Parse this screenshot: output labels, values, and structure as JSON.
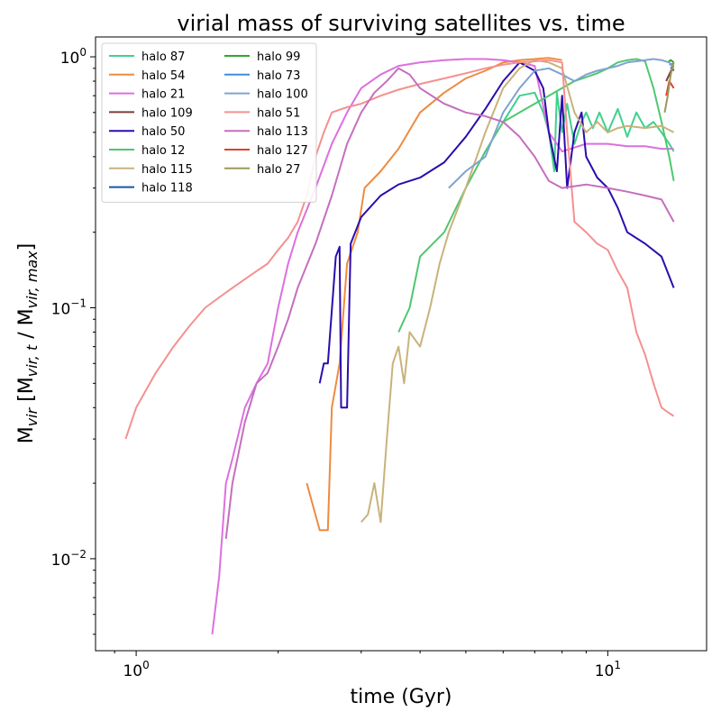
{
  "chart_data": {
    "type": "line",
    "title": "virial mass of surviving satellites vs. time",
    "xlabel": "time (Gyr)",
    "ylabel_main": "M",
    "ylabel_sub": "vir",
    "ylabel_bracket": " [M",
    "ylabel_num_sub": "vir, t",
    "ylabel_sep": " / M",
    "ylabel_den_sub": "vir, max",
    "ylabel_close": "]",
    "xscale": "log",
    "yscale": "log",
    "xlim": [
      0.82,
      16.2
    ],
    "ylim": [
      0.0043,
      1.2
    ],
    "x_ticks": [
      {
        "value": 1,
        "label": "10",
        "sup": "0"
      },
      {
        "value": 10,
        "label": "10",
        "sup": "1"
      }
    ],
    "y_ticks": [
      {
        "value": 0.01,
        "label": "10",
        "sup": "−2"
      },
      {
        "value": 0.1,
        "label": "10",
        "sup": "−1"
      },
      {
        "value": 1,
        "label": "10",
        "sup": "0"
      }
    ],
    "legend_position": "upper-left",
    "series": [
      {
        "name": "halo 87",
        "color": "#3fd18c",
        "points": [
          [
            6.0,
            0.55
          ],
          [
            6.5,
            0.7
          ],
          [
            7.0,
            0.72
          ],
          [
            7.3,
            0.6
          ],
          [
            7.5,
            0.5
          ],
          [
            7.7,
            0.35
          ],
          [
            7.8,
            0.72
          ],
          [
            8.0,
            0.5
          ],
          [
            8.2,
            0.65
          ],
          [
            8.5,
            0.45
          ],
          [
            8.8,
            0.55
          ],
          [
            9.0,
            0.6
          ],
          [
            9.3,
            0.52
          ],
          [
            9.6,
            0.6
          ],
          [
            10.0,
            0.5
          ],
          [
            10.5,
            0.62
          ],
          [
            11.0,
            0.48
          ],
          [
            11.5,
            0.6
          ],
          [
            12.0,
            0.52
          ],
          [
            12.5,
            0.55
          ],
          [
            13.0,
            0.5
          ],
          [
            13.5,
            0.45
          ],
          [
            13.8,
            0.42
          ]
        ]
      },
      {
        "name": "halo 54",
        "color": "#ee8b40",
        "points": [
          [
            2.3,
            0.02
          ],
          [
            2.45,
            0.013
          ],
          [
            2.55,
            0.013
          ],
          [
            2.6,
            0.04
          ],
          [
            2.7,
            0.06
          ],
          [
            2.8,
            0.15
          ],
          [
            2.95,
            0.2
          ],
          [
            3.05,
            0.3
          ],
          [
            3.3,
            0.35
          ],
          [
            3.6,
            0.43
          ],
          [
            4.0,
            0.6
          ],
          [
            4.5,
            0.72
          ],
          [
            5.0,
            0.82
          ],
          [
            5.5,
            0.88
          ],
          [
            6.0,
            0.95
          ],
          [
            6.5,
            0.97
          ],
          [
            7.0,
            0.98
          ],
          [
            7.5,
            0.99
          ],
          [
            8.0,
            0.97
          ]
        ]
      },
      {
        "name": "halo 21",
        "color": "#dd6fe0",
        "points": [
          [
            1.45,
            0.005
          ],
          [
            1.5,
            0.0085
          ],
          [
            1.55,
            0.02
          ],
          [
            1.6,
            0.025
          ],
          [
            1.7,
            0.04
          ],
          [
            1.8,
            0.05
          ],
          [
            1.9,
            0.06
          ],
          [
            2.0,
            0.1
          ],
          [
            2.1,
            0.15
          ],
          [
            2.2,
            0.2
          ],
          [
            2.4,
            0.3
          ],
          [
            2.6,
            0.45
          ],
          [
            2.8,
            0.6
          ],
          [
            3.0,
            0.75
          ],
          [
            3.3,
            0.85
          ],
          [
            3.6,
            0.92
          ],
          [
            4.0,
            0.95
          ],
          [
            4.5,
            0.97
          ],
          [
            5.0,
            0.98
          ],
          [
            5.5,
            0.98
          ],
          [
            6.0,
            0.97
          ],
          [
            6.5,
            0.95
          ],
          [
            7.0,
            0.92
          ],
          [
            7.5,
            0.5
          ],
          [
            8.0,
            0.42
          ],
          [
            9.0,
            0.45
          ],
          [
            10.0,
            0.45
          ],
          [
            11.0,
            0.44
          ],
          [
            12.0,
            0.44
          ],
          [
            13.0,
            0.43
          ],
          [
            13.8,
            0.43
          ]
        ]
      },
      {
        "name": "halo 109",
        "color": "#7b3c3c",
        "points": [
          [
            13.3,
            0.8
          ],
          [
            13.5,
            0.85
          ],
          [
            13.7,
            0.9
          ],
          [
            13.8,
            0.88
          ]
        ]
      },
      {
        "name": "halo 50",
        "color": "#2c0cad",
        "points": [
          [
            2.45,
            0.05
          ],
          [
            2.5,
            0.06
          ],
          [
            2.55,
            0.06
          ],
          [
            2.65,
            0.16
          ],
          [
            2.7,
            0.175
          ],
          [
            2.72,
            0.04
          ],
          [
            2.8,
            0.04
          ],
          [
            2.85,
            0.18
          ],
          [
            3.0,
            0.23
          ],
          [
            3.3,
            0.28
          ],
          [
            3.6,
            0.31
          ],
          [
            4.0,
            0.33
          ],
          [
            4.5,
            0.38
          ],
          [
            5.0,
            0.48
          ],
          [
            5.5,
            0.62
          ],
          [
            6.0,
            0.8
          ],
          [
            6.5,
            0.95
          ],
          [
            7.0,
            0.88
          ],
          [
            7.3,
            0.75
          ],
          [
            7.5,
            0.5
          ],
          [
            7.8,
            0.35
          ],
          [
            8.0,
            0.7
          ],
          [
            8.2,
            0.3
          ],
          [
            8.5,
            0.5
          ],
          [
            8.8,
            0.6
          ],
          [
            9.0,
            0.4
          ],
          [
            9.5,
            0.33
          ],
          [
            10.0,
            0.3
          ],
          [
            10.5,
            0.25
          ],
          [
            11.0,
            0.2
          ],
          [
            12.0,
            0.18
          ],
          [
            13.0,
            0.16
          ],
          [
            13.8,
            0.12
          ]
        ]
      },
      {
        "name": "halo 12",
        "color": "#4fc76f",
        "points": [
          [
            3.6,
            0.08
          ],
          [
            3.8,
            0.1
          ],
          [
            4.0,
            0.16
          ],
          [
            4.5,
            0.2
          ],
          [
            5.0,
            0.3
          ],
          [
            5.5,
            0.42
          ],
          [
            6.0,
            0.55
          ],
          [
            6.5,
            0.6
          ],
          [
            7.0,
            0.65
          ],
          [
            7.5,
            0.7
          ],
          [
            8.0,
            0.75
          ],
          [
            8.5,
            0.8
          ],
          [
            9.0,
            0.83
          ],
          [
            9.5,
            0.86
          ],
          [
            10.0,
            0.9
          ],
          [
            10.5,
            0.95
          ],
          [
            11.0,
            0.97
          ],
          [
            11.5,
            0.98
          ],
          [
            12.0,
            0.96
          ],
          [
            12.5,
            0.75
          ],
          [
            13.0,
            0.55
          ],
          [
            13.5,
            0.4
          ],
          [
            13.8,
            0.32
          ]
        ]
      },
      {
        "name": "halo 115",
        "color": "#c9b27c",
        "points": [
          [
            3.0,
            0.014
          ],
          [
            3.1,
            0.015
          ],
          [
            3.2,
            0.02
          ],
          [
            3.3,
            0.014
          ],
          [
            3.4,
            0.03
          ],
          [
            3.5,
            0.06
          ],
          [
            3.6,
            0.07
          ],
          [
            3.7,
            0.05
          ],
          [
            3.8,
            0.08
          ],
          [
            4.0,
            0.07
          ],
          [
            4.2,
            0.1
          ],
          [
            4.4,
            0.15
          ],
          [
            4.6,
            0.2
          ],
          [
            5.0,
            0.3
          ],
          [
            5.5,
            0.5
          ],
          [
            6.0,
            0.75
          ],
          [
            6.5,
            0.9
          ],
          [
            7.0,
            0.97
          ],
          [
            7.5,
            0.95
          ],
          [
            8.0,
            0.9
          ],
          [
            8.5,
            0.6
          ],
          [
            9.0,
            0.5
          ],
          [
            9.5,
            0.55
          ],
          [
            10.0,
            0.5
          ],
          [
            10.5,
            0.52
          ],
          [
            11.0,
            0.53
          ],
          [
            12.0,
            0.52
          ],
          [
            13.0,
            0.53
          ],
          [
            13.8,
            0.5
          ]
        ]
      },
      {
        "name": "halo 118",
        "color": "#1a55a8",
        "points": [
          [
            13.6,
            0.9
          ],
          [
            13.8,
            0.92
          ]
        ]
      },
      {
        "name": "halo 99",
        "color": "#2ea82e",
        "points": [
          [
            13.4,
            0.95
          ],
          [
            13.6,
            0.97
          ],
          [
            13.8,
            0.95
          ]
        ]
      },
      {
        "name": "halo 73",
        "color": "#3b8fd8",
        "points": [
          [
            13.5,
            0.93
          ],
          [
            13.8,
            0.94
          ]
        ]
      },
      {
        "name": "halo 100",
        "color": "#7fa3d1",
        "points": [
          [
            4.6,
            0.3
          ],
          [
            5.0,
            0.35
          ],
          [
            5.5,
            0.4
          ],
          [
            6.0,
            0.6
          ],
          [
            6.5,
            0.75
          ],
          [
            7.0,
            0.88
          ],
          [
            7.5,
            0.9
          ],
          [
            8.0,
            0.85
          ],
          [
            8.5,
            0.8
          ],
          [
            9.0,
            0.85
          ],
          [
            9.5,
            0.88
          ],
          [
            10.0,
            0.9
          ],
          [
            10.5,
            0.92
          ],
          [
            11.0,
            0.95
          ],
          [
            11.5,
            0.96
          ],
          [
            12.0,
            0.97
          ],
          [
            12.5,
            0.98
          ],
          [
            13.0,
            0.97
          ],
          [
            13.5,
            0.95
          ],
          [
            13.8,
            0.9
          ]
        ]
      },
      {
        "name": "halo 51",
        "color": "#f59090",
        "points": [
          [
            0.95,
            0.03
          ],
          [
            1.0,
            0.04
          ],
          [
            1.1,
            0.055
          ],
          [
            1.2,
            0.07
          ],
          [
            1.3,
            0.085
          ],
          [
            1.4,
            0.1
          ],
          [
            1.5,
            0.11
          ],
          [
            1.6,
            0.12
          ],
          [
            1.7,
            0.13
          ],
          [
            1.8,
            0.14
          ],
          [
            1.9,
            0.15
          ],
          [
            2.0,
            0.17
          ],
          [
            2.1,
            0.19
          ],
          [
            2.2,
            0.22
          ],
          [
            2.3,
            0.28
          ],
          [
            2.4,
            0.4
          ],
          [
            2.5,
            0.5
          ],
          [
            2.6,
            0.6
          ],
          [
            2.8,
            0.63
          ],
          [
            3.0,
            0.65
          ],
          [
            3.3,
            0.7
          ],
          [
            3.6,
            0.74
          ],
          [
            4.0,
            0.78
          ],
          [
            4.5,
            0.82
          ],
          [
            5.0,
            0.86
          ],
          [
            5.5,
            0.9
          ],
          [
            6.0,
            0.93
          ],
          [
            6.5,
            0.95
          ],
          [
            7.0,
            0.96
          ],
          [
            7.5,
            0.97
          ],
          [
            8.0,
            0.95
          ],
          [
            8.2,
            0.5
          ],
          [
            8.5,
            0.22
          ],
          [
            9.0,
            0.2
          ],
          [
            9.5,
            0.18
          ],
          [
            10.0,
            0.17
          ],
          [
            10.5,
            0.14
          ],
          [
            11.0,
            0.12
          ],
          [
            11.5,
            0.08
          ],
          [
            12.0,
            0.065
          ],
          [
            12.5,
            0.05
          ],
          [
            13.0,
            0.04
          ],
          [
            13.5,
            0.038
          ],
          [
            13.8,
            0.037
          ]
        ]
      },
      {
        "name": "halo 113",
        "color": "#c46fbe",
        "points": [
          [
            1.55,
            0.012
          ],
          [
            1.6,
            0.02
          ],
          [
            1.7,
            0.035
          ],
          [
            1.8,
            0.05
          ],
          [
            1.9,
            0.055
          ],
          [
            2.0,
            0.07
          ],
          [
            2.1,
            0.09
          ],
          [
            2.2,
            0.12
          ],
          [
            2.4,
            0.18
          ],
          [
            2.6,
            0.28
          ],
          [
            2.8,
            0.45
          ],
          [
            3.0,
            0.6
          ],
          [
            3.2,
            0.72
          ],
          [
            3.4,
            0.8
          ],
          [
            3.6,
            0.9
          ],
          [
            3.8,
            0.85
          ],
          [
            4.0,
            0.75
          ],
          [
            4.5,
            0.65
          ],
          [
            5.0,
            0.6
          ],
          [
            5.5,
            0.58
          ],
          [
            6.0,
            0.55
          ],
          [
            6.5,
            0.48
          ],
          [
            7.0,
            0.4
          ],
          [
            7.5,
            0.32
          ],
          [
            8.0,
            0.3
          ],
          [
            9.0,
            0.31
          ],
          [
            10.0,
            0.3
          ],
          [
            11.0,
            0.29
          ],
          [
            12.0,
            0.28
          ],
          [
            13.0,
            0.27
          ],
          [
            13.8,
            0.22
          ]
        ]
      },
      {
        "name": "halo 127",
        "color": "#e0402a",
        "points": [
          [
            13.3,
            0.7
          ],
          [
            13.5,
            0.8
          ],
          [
            13.8,
            0.75
          ]
        ]
      },
      {
        "name": "halo 27",
        "color": "#9a9a58",
        "points": [
          [
            13.2,
            0.6
          ],
          [
            13.4,
            0.7
          ],
          [
            13.6,
            0.85
          ],
          [
            13.8,
            0.95
          ]
        ]
      }
    ]
  }
}
